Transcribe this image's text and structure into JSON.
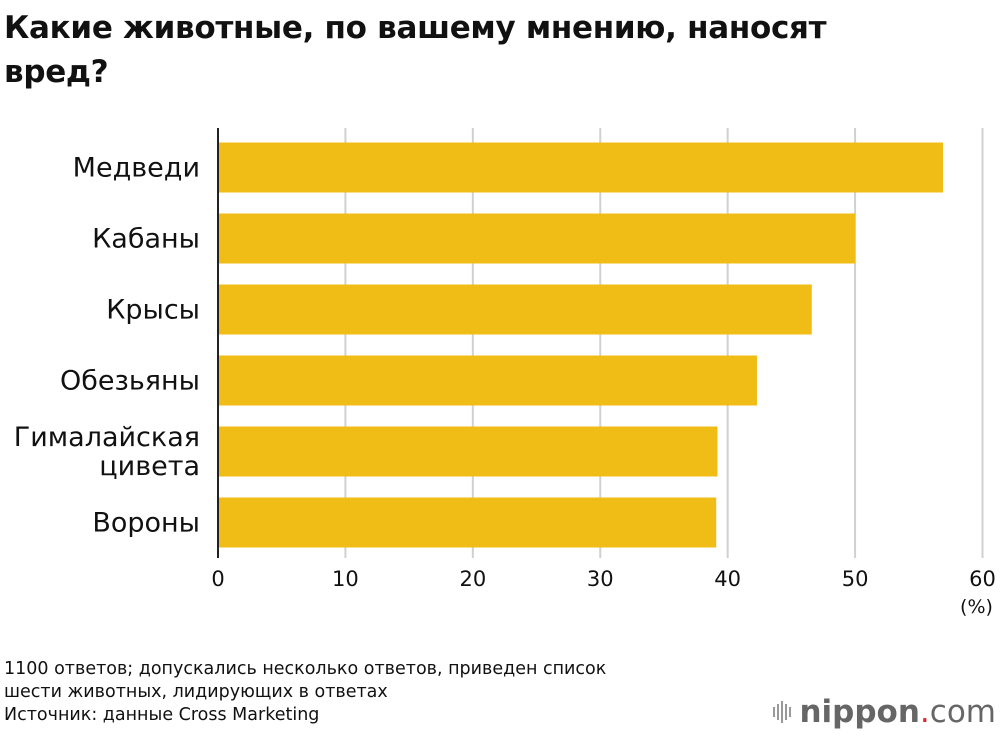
{
  "title": "Какие животные, по вашему мнению, наносят вред?",
  "chart_data": {
    "type": "bar",
    "orientation": "horizontal",
    "title": "Какие животные, по вашему мнению, наносят вред?",
    "categories": [
      "Медведи",
      "Кабаны",
      "Крысы",
      "Обезьяны",
      "Гималайская цивета",
      "Вороны"
    ],
    "category_lines": [
      [
        "Медведи"
      ],
      [
        "Кабаны"
      ],
      [
        "Крысы"
      ],
      [
        "Обезьяны"
      ],
      [
        "Гималайская",
        "цивета"
      ],
      [
        "Вороны"
      ]
    ],
    "values": [
      56.9,
      50.0,
      46.6,
      42.3,
      39.2,
      39.1
    ],
    "xlim": [
      0,
      60
    ],
    "xticks": [
      0,
      10,
      20,
      30,
      40,
      50,
      60
    ],
    "xunit": "(%)",
    "grid": true,
    "bar_color": "#F0BC16"
  },
  "notes": [
    "1100 ответов; допускались несколько ответов, приведен список",
    "шести животных, лидирующих в ответах",
    "Источник: данные Cross Marketing"
  ],
  "logo": {
    "name": "nippon",
    "dot": ".",
    "suffix": "com"
  }
}
